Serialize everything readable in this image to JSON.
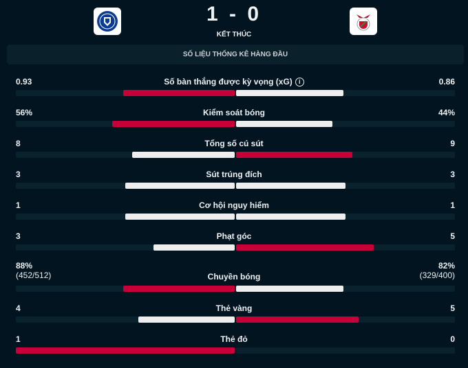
{
  "match": {
    "home_team": "Chelsea",
    "away_team": "Benfica",
    "score": "1 - 0",
    "status": "KẾT THÚC"
  },
  "section_title": "SỐ LIỆU THỐNG KÊ HÀNG ĐẦU",
  "colors": {
    "leader": "#c8003a",
    "other": "#eeeeee",
    "track": "#0a222e",
    "background": "#01141f"
  },
  "stats": [
    {
      "label": "Số bàn thắng được kỳ vọng (xG)",
      "home": "0.93",
      "away": "0.86",
      "home_fill": 0.51,
      "away_fill": 0.49,
      "leader": "home",
      "info_icon": "info-icon"
    },
    {
      "label": "Kiểm soát bóng",
      "home": "56%",
      "away": "44%",
      "home_fill": 0.56,
      "away_fill": 0.44,
      "leader": "home"
    },
    {
      "label": "Tổng số cú sút",
      "home": "8",
      "away": "9",
      "home_fill": 0.47,
      "away_fill": 0.53,
      "leader": "away"
    },
    {
      "label": "Sút trúng đích",
      "home": "3",
      "away": "3",
      "home_fill": 0.5,
      "away_fill": 0.5,
      "leader": "none"
    },
    {
      "label": "Cơ hội nguy hiểm",
      "home": "1",
      "away": "1",
      "home_fill": 0.5,
      "away_fill": 0.5,
      "leader": "none"
    },
    {
      "label": "Phạt góc",
      "home": "3",
      "away": "5",
      "home_fill": 0.37,
      "away_fill": 0.63,
      "leader": "away"
    },
    {
      "label": "Chuyền bóng",
      "home": "88%",
      "away": "82%",
      "home_sub": "(452/512)",
      "away_sub": "(329/400)",
      "home_fill": 0.51,
      "away_fill": 0.49,
      "leader": "home"
    },
    {
      "label": "Thẻ vàng",
      "home": "4",
      "away": "5",
      "home_fill": 0.44,
      "away_fill": 0.56,
      "leader": "away"
    },
    {
      "label": "Thẻ đỏ",
      "home": "1",
      "away": "0",
      "home_fill": 1.0,
      "away_fill": 0.0,
      "leader": "home"
    }
  ]
}
